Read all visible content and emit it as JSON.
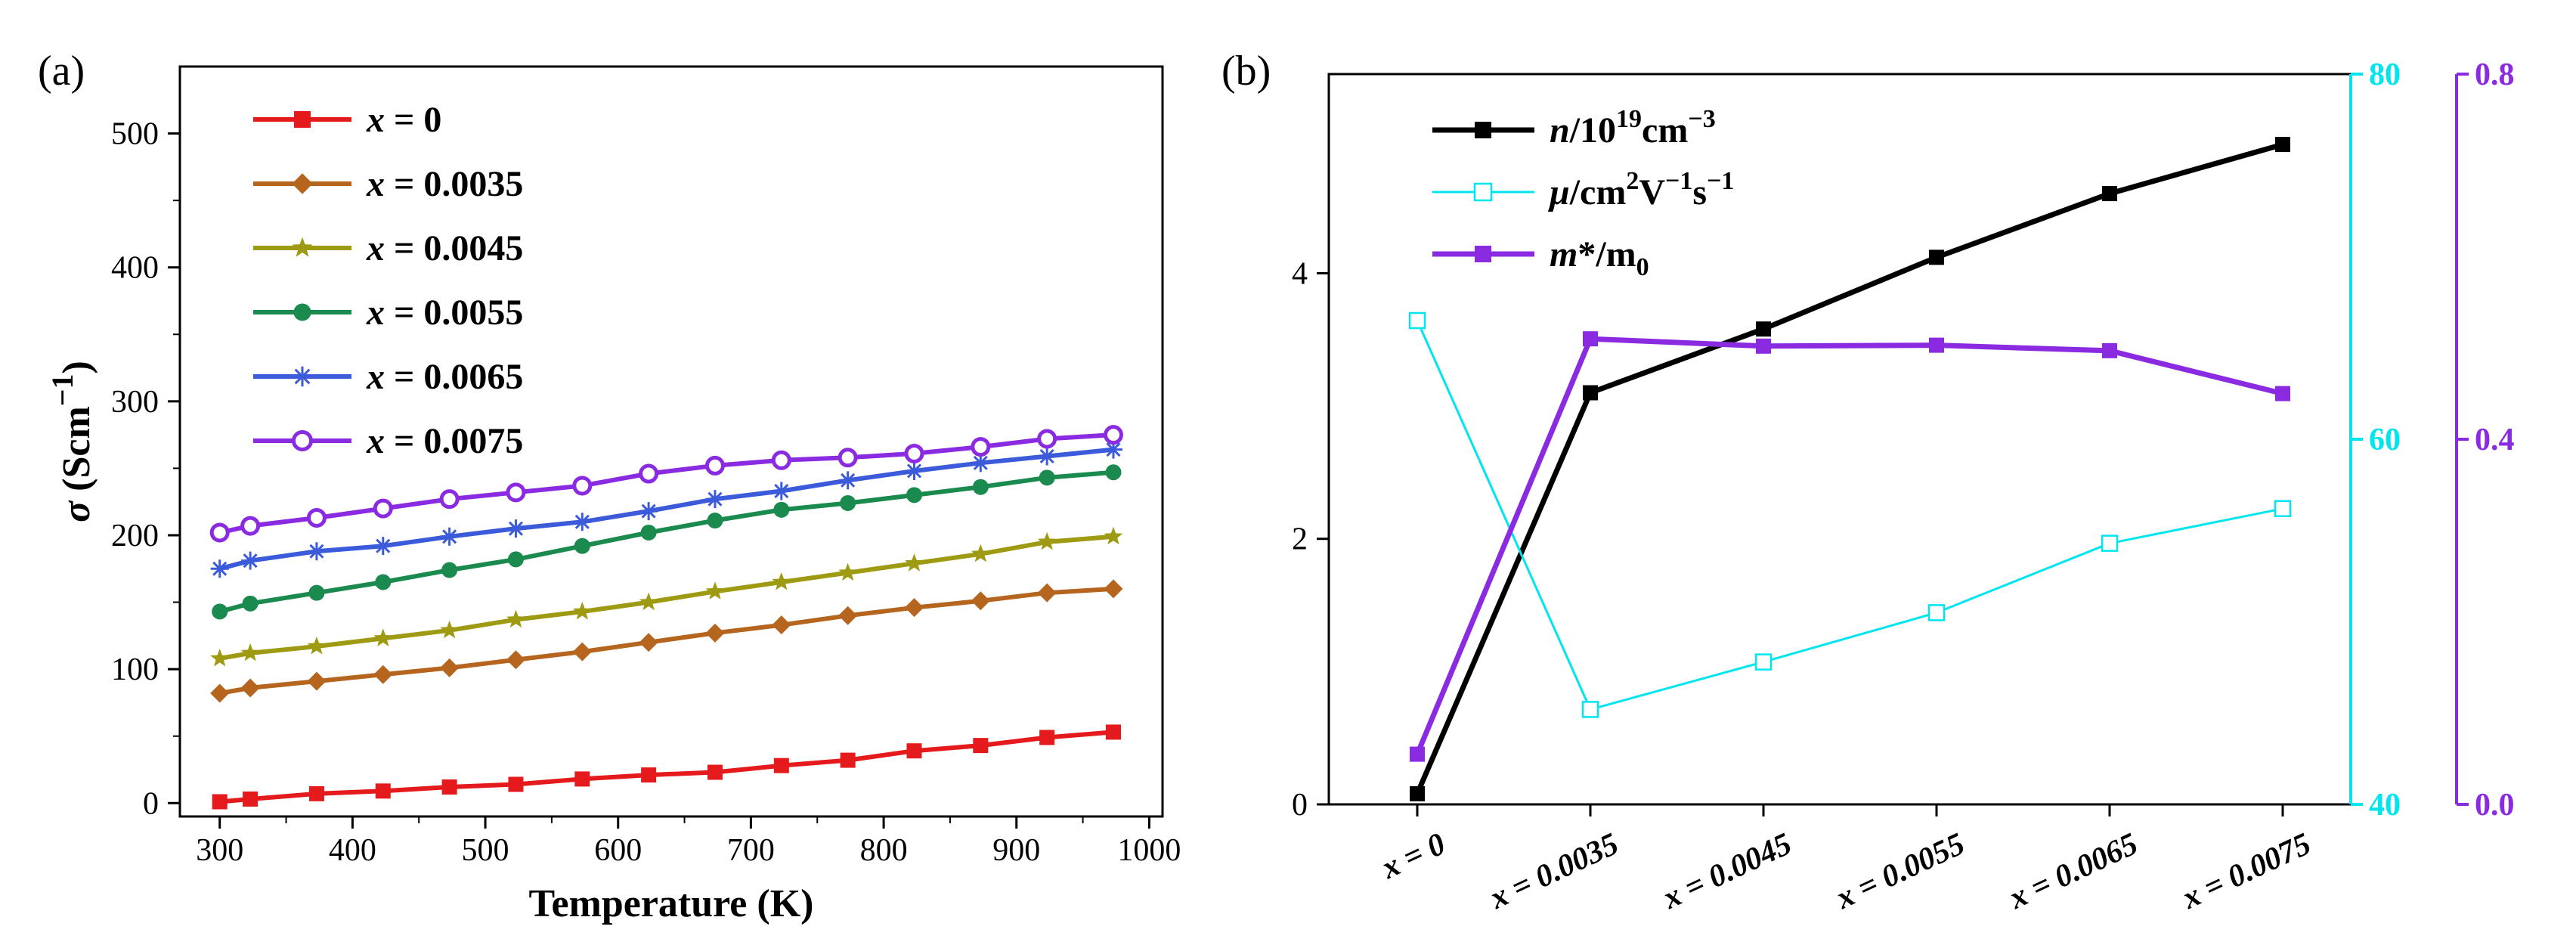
{
  "chart_data": [
    {
      "type": "line",
      "panel_label": "(a)",
      "xlabel": "Temperature (K)",
      "ylabel": "σ (Scm⁻¹)",
      "xlim": [
        270,
        1010
      ],
      "ylim": [
        -10,
        550
      ],
      "xticks": [
        300,
        400,
        500,
        600,
        700,
        800,
        900,
        1000
      ],
      "yticks": [
        0,
        100,
        200,
        300,
        400,
        500
      ],
      "grid": false,
      "legend_position": "top-left",
      "x": [
        300,
        323,
        373,
        423,
        473,
        523,
        573,
        623,
        673,
        723,
        773,
        823,
        873,
        923,
        973
      ],
      "series": [
        {
          "name": "x = 0",
          "var": "x",
          "rest": " = 0",
          "color": "#e41a1c",
          "marker": "square",
          "values": [
            1,
            3,
            7,
            9,
            12,
            14,
            18,
            21,
            23,
            28,
            32,
            39,
            43,
            49,
            53
          ]
        },
        {
          "name": "x = 0.0035",
          "var": "x",
          "rest": " = 0.0035",
          "color": "#b5651d",
          "marker": "diamond",
          "values": [
            82,
            86,
            91,
            96,
            101,
            107,
            113,
            120,
            127,
            133,
            140,
            146,
            151,
            157,
            160
          ]
        },
        {
          "name": "x = 0.0045",
          "var": "x",
          "rest": " = 0.0045",
          "color": "#9e9a12",
          "marker": "star",
          "values": [
            108,
            112,
            117,
            123,
            129,
            137,
            143,
            150,
            158,
            165,
            172,
            179,
            186,
            195,
            199
          ]
        },
        {
          "name": "x = 0.0055",
          "var": "x",
          "rest": " = 0.0055",
          "color": "#1a8a4e",
          "marker": "circle",
          "values": [
            143,
            149,
            157,
            165,
            174,
            182,
            192,
            202,
            211,
            219,
            224,
            230,
            236,
            243,
            247
          ]
        },
        {
          "name": "x = 0.0065",
          "var": "x",
          "rest": " = 0.0065",
          "color": "#3b5bdb",
          "marker": "asterisk",
          "values": [
            175,
            181,
            188,
            192,
            199,
            205,
            210,
            218,
            227,
            233,
            241,
            248,
            254,
            259,
            264
          ]
        },
        {
          "name": "x = 0.0075",
          "var": "x",
          "rest": " = 0.0075",
          "color": "#8a2be2",
          "marker": "circle-open",
          "values": [
            202,
            207,
            213,
            220,
            227,
            232,
            237,
            246,
            252,
            256,
            258,
            261,
            266,
            272,
            275
          ]
        }
      ]
    },
    {
      "type": "line",
      "panel_label": "(b)",
      "categories": [
        "x = 0",
        "x = 0.0035",
        "x = 0.0045",
        "x = 0.0055",
        "x = 0.0065",
        "x = 0.0075"
      ],
      "category_var": "x",
      "axes": {
        "left": {
          "ylim": [
            0,
            5.5
          ],
          "yticks": [
            0,
            2,
            4
          ],
          "color": "#000000"
        },
        "right1": {
          "ylim": [
            40,
            80
          ],
          "yticks": [
            40,
            60,
            80
          ],
          "color": "#00e5ee"
        },
        "right2": {
          "ylim": [
            0,
            0.8
          ],
          "yticks": [
            0.0,
            0.4,
            0.8
          ],
          "tick_labels": [
            "0.0",
            "0.4",
            "0.8"
          ],
          "color": "#8a2be2"
        }
      },
      "grid": false,
      "legend_position": "top-left",
      "series": [
        {
          "name": "n/10¹⁹cm⁻³",
          "legend_var": "n",
          "legend_rest": "/10",
          "legend_sup": "19",
          "legend_rest2": "cm",
          "legend_sup2": "−3",
          "axis": "left",
          "color": "#000000",
          "marker": "square",
          "values": [
            0.08,
            3.1,
            3.58,
            4.12,
            4.6,
            4.97
          ]
        },
        {
          "name": "μ/cm²V⁻¹s⁻¹",
          "legend_var": "μ",
          "legend_rest": "/cm",
          "legend_sup": "2",
          "legend_rest2": "V",
          "legend_sup2": "−1",
          "legend_rest3": "s",
          "legend_sup3": "−1",
          "axis": "right1",
          "color": "#00e5ee",
          "marker": "square-open",
          "values": [
            66.5,
            45.2,
            47.8,
            50.5,
            54.3,
            56.2
          ]
        },
        {
          "name": "m*/m₀",
          "legend_var": "m",
          "legend_rest": "*/m",
          "legend_sub": "0",
          "axis": "right2",
          "color": "#8a2be2",
          "marker": "square",
          "values": [
            0.055,
            0.51,
            0.502,
            0.503,
            0.497,
            0.45
          ]
        }
      ]
    }
  ]
}
